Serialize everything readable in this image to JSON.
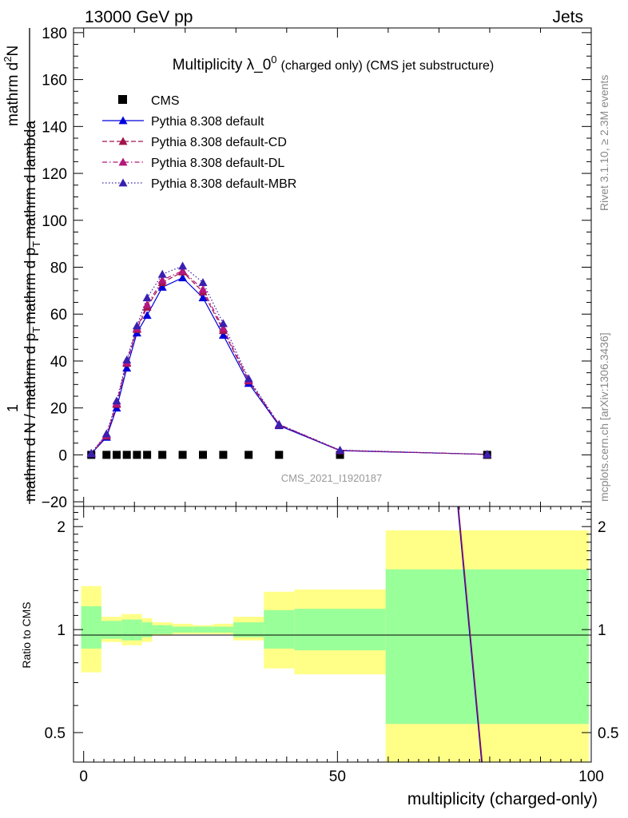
{
  "header": {
    "left": "13000 GeV pp",
    "right": "Jets"
  },
  "side_labels": {
    "rivet": "Rivet 3.1.10, ≥ 2.3M events",
    "mcplots": "mcplots.cern.ch [arXiv:1306.3436]"
  },
  "chart_data": [
    {
      "type": "line",
      "title": "Multiplicity λ_0",
      "title_sup": "0",
      "subtitle": "(charged only) (CMS jet substructure)",
      "watermark": "CMS_2021_I1920187",
      "ylabel_parts": {
        "one": "1",
        "denominator": "mathrm d N / mathrm d p",
        "den_sub": "T",
        "den_rest": "mathrm d p",
        "den_sub2": "T",
        "den_end": "mathrm d lambda",
        "numerator": "mathrm d",
        "num_sup": "2",
        "num_end": "N"
      },
      "xlim": [
        -2,
        100
      ],
      "ylim": [
        -22,
        182
      ],
      "yticks": [
        -20,
        0,
        20,
        40,
        60,
        80,
        100,
        120,
        140,
        160,
        180
      ],
      "yticklabels": [
        "−20",
        "0",
        "20",
        "40",
        "60",
        "80",
        "100",
        "120",
        "140",
        "160",
        "180"
      ],
      "x_edges": [
        0,
        3.5,
        5.5,
        7.5,
        9.5,
        11.5,
        13.5,
        17.5,
        21.5,
        25.5,
        29.5,
        35.5,
        41.5,
        59.5,
        99.5
      ],
      "series": [
        {
          "name": "CMS",
          "color": "#000000",
          "style": "points",
          "marker": "square",
          "x": [
            1.5,
            4.5,
            6.5,
            8.5,
            10.5,
            12.5,
            15.5,
            19.5,
            23.5,
            27.5,
            32.5,
            38.5,
            50.5,
            79.5
          ],
          "y": [
            0,
            0,
            0,
            0,
            0,
            0,
            0,
            0,
            0,
            0,
            0,
            0,
            0,
            0
          ]
        },
        {
          "name": "Pythia 8.308 default",
          "color": "#0000dd",
          "style": "solid",
          "marker": "triangle",
          "x": [
            1.5,
            4.5,
            6.5,
            8.5,
            10.5,
            12.5,
            15.5,
            19.5,
            23.5,
            27.5,
            32.5,
            38.5,
            50.5,
            79.5
          ],
          "y": [
            0.5,
            7.5,
            20,
            37,
            52,
            59.5,
            71.5,
            75.5,
            67,
            51,
            30.5,
            12.5,
            1.8,
            0.2
          ]
        },
        {
          "name": "Pythia 8.308 default-CD",
          "color": "#a0154e",
          "style": "dashed",
          "marker": "triangle",
          "x": [
            1.5,
            4.5,
            6.5,
            8.5,
            10.5,
            12.5,
            15.5,
            19.5,
            23.5,
            27.5,
            32.5,
            38.5,
            50.5,
            79.5
          ],
          "y": [
            0.6,
            8,
            21.5,
            39,
            53.5,
            63,
            73.5,
            78,
            69.5,
            53,
            31.5,
            12.8,
            1.9,
            0.2
          ]
        },
        {
          "name": "Pythia 8.308 default-DL",
          "color": "#b5177a",
          "style": "dashdot",
          "marker": "triangle",
          "x": [
            1.5,
            4.5,
            6.5,
            8.5,
            10.5,
            12.5,
            15.5,
            19.5,
            23.5,
            27.5,
            32.5,
            38.5,
            50.5,
            79.5
          ],
          "y": [
            0.6,
            8.5,
            22,
            39.5,
            54,
            64,
            74.5,
            78.5,
            70.5,
            54,
            31.8,
            13,
            1.9,
            0.2
          ]
        },
        {
          "name": "Pythia 8.308 default-MBR",
          "color": "#3a1fb0",
          "style": "dotted",
          "marker": "triangle",
          "x": [
            1.5,
            4.5,
            6.5,
            8.5,
            10.5,
            12.5,
            15.5,
            19.5,
            23.5,
            27.5,
            32.5,
            38.5,
            50.5,
            79.5
          ],
          "y": [
            0.7,
            9,
            23,
            40.5,
            55,
            67,
            77,
            80.5,
            73.5,
            56,
            32.5,
            13,
            2,
            0.2
          ]
        }
      ]
    },
    {
      "type": "area",
      "ylabel": "Ratio to CMS",
      "xlabel": "multiplicity (charged-only)",
      "xlim": [
        -2,
        100
      ],
      "ylim": [
        0.41,
        2.29
      ],
      "scale": "log",
      "xticks": [
        0,
        50,
        100
      ],
      "xticklabels": [
        "0",
        "50",
        "100"
      ],
      "yticks": [
        0.5,
        1,
        2
      ],
      "yticklabels": [
        "0.5",
        "1",
        "2"
      ],
      "band_colors": {
        "inner": "#99ff99",
        "outer": "#ffff88"
      },
      "bands": [
        {
          "x0": -0.5,
          "x1": 3.5,
          "inner": [
            0.88,
            1.17
          ],
          "outer": [
            0.75,
            1.34
          ]
        },
        {
          "x0": 3.5,
          "x1": 7.5,
          "inner": [
            0.94,
            1.06
          ],
          "outer": [
            0.92,
            1.09
          ]
        },
        {
          "x0": 7.5,
          "x1": 11.5,
          "inner": [
            0.93,
            1.07
          ],
          "outer": [
            0.9,
            1.11
          ]
        },
        {
          "x0": 11.5,
          "x1": 13.5,
          "inner": [
            0.95,
            1.05
          ],
          "outer": [
            0.92,
            1.08
          ]
        },
        {
          "x0": 13.5,
          "x1": 17.5,
          "inner": [
            0.97,
            1.03
          ],
          "outer": [
            0.96,
            1.05
          ]
        },
        {
          "x0": 17.5,
          "x1": 21.5,
          "inner": [
            0.98,
            1.02
          ],
          "outer": [
            0.97,
            1.04
          ]
        },
        {
          "x0": 21.5,
          "x1": 25.5,
          "inner": [
            0.98,
            1.02
          ],
          "outer": [
            0.97,
            1.03
          ]
        },
        {
          "x0": 25.5,
          "x1": 29.5,
          "inner": [
            0.98,
            1.02
          ],
          "outer": [
            0.97,
            1.04
          ]
        },
        {
          "x0": 29.5,
          "x1": 35.5,
          "inner": [
            0.95,
            1.05
          ],
          "outer": [
            0.93,
            1.09
          ]
        },
        {
          "x0": 35.5,
          "x1": 41.5,
          "inner": [
            0.88,
            1.14
          ],
          "outer": [
            0.77,
            1.29
          ]
        },
        {
          "x0": 41.5,
          "x1": 59.5,
          "inner": [
            0.87,
            1.15
          ],
          "outer": [
            0.74,
            1.31
          ]
        },
        {
          "x0": 59.5,
          "x1": 99.5,
          "inner": [
            0.53,
            1.5
          ],
          "outer": [
            0.41,
            1.95
          ]
        }
      ],
      "ratio_line": {
        "name": "Pythia ratio",
        "colors": [
          "#0000dd",
          "#a0154e"
        ],
        "x": [
          73.7,
          78.4
        ],
        "y": [
          2.29,
          0.41
        ]
      }
    }
  ]
}
